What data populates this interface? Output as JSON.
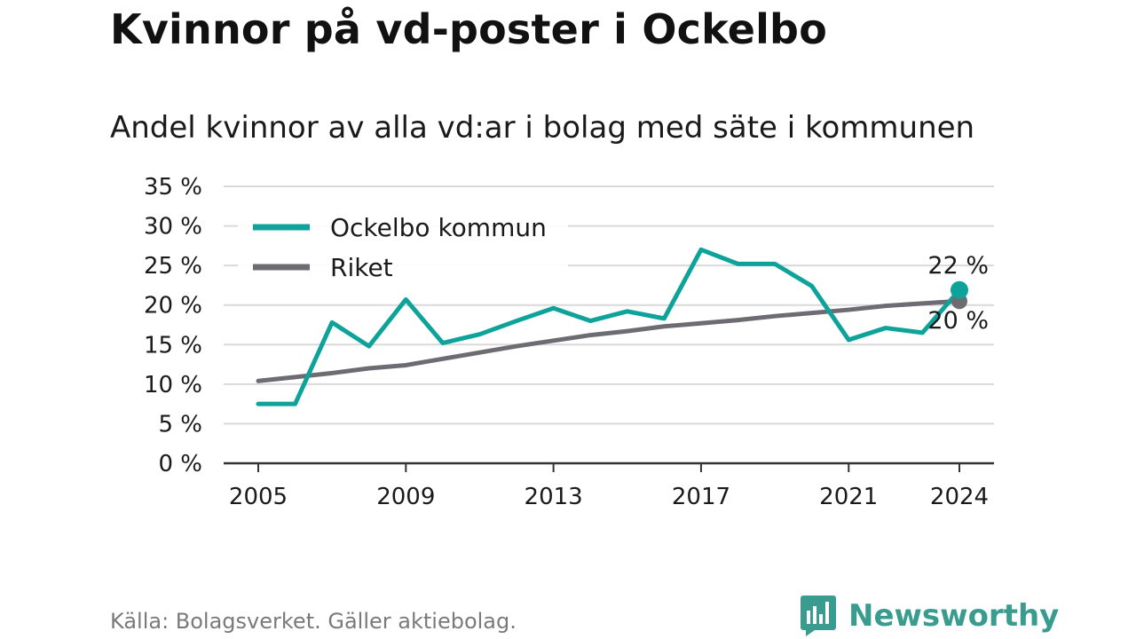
{
  "title": "Kvinnor på vd-poster i Ockelbo",
  "subtitle": "Andel kvinnor av alla vd:ar i bolag med säte i kommunen",
  "source": "Källa: Bolagsverket. Gäller aktiebolag.",
  "brand": {
    "name": "Newsworthy",
    "icon": "newsworthy-logo-icon"
  },
  "colors": {
    "ockelbo": "#0ea39a",
    "riket": "#6e6c72",
    "grid": "#d9d9d9",
    "axis": "#333333",
    "brand": "#3a9c8f"
  },
  "chart_data": {
    "type": "line",
    "x": [
      2005,
      2006,
      2007,
      2008,
      2009,
      2010,
      2011,
      2012,
      2013,
      2014,
      2015,
      2016,
      2017,
      2018,
      2019,
      2020,
      2021,
      2022,
      2023,
      2024
    ],
    "xticks": [
      2005,
      2009,
      2013,
      2017,
      2021,
      2024
    ],
    "xtick_labels": [
      "2005",
      "2009",
      "2013",
      "2017",
      "2021",
      "2024"
    ],
    "ylim": [
      0,
      35
    ],
    "yticks": [
      0,
      5,
      10,
      15,
      20,
      25,
      30,
      35
    ],
    "ytick_labels": [
      "0 %",
      "5 %",
      "10 %",
      "15 %",
      "20 %",
      "25 %",
      "30 %",
      "35 %"
    ],
    "grid": true,
    "legend_position": "top-left",
    "series": [
      {
        "name": "Ockelbo kommun",
        "color": "#0ea39a",
        "values": [
          7.5,
          7.5,
          17.8,
          14.8,
          20.7,
          15.2,
          16.3,
          18.0,
          19.6,
          18.0,
          19.2,
          18.3,
          27.0,
          25.2,
          25.2,
          22.4,
          15.6,
          17.1,
          16.5,
          21.9
        ],
        "end_label": "22 %"
      },
      {
        "name": "Riket",
        "color": "#6e6c72",
        "values": [
          10.4,
          10.9,
          11.4,
          12.0,
          12.4,
          13.2,
          14.0,
          14.8,
          15.5,
          16.2,
          16.7,
          17.3,
          17.7,
          18.1,
          18.6,
          19.0,
          19.4,
          19.9,
          20.2,
          20.5
        ],
        "end_label": "20 %"
      }
    ]
  }
}
